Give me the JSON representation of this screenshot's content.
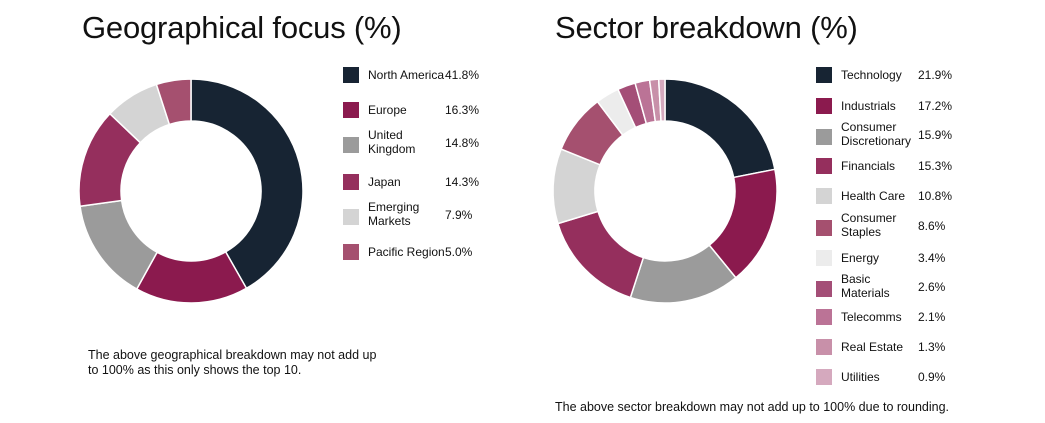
{
  "chart_data": [
    {
      "type": "pie",
      "title": "Geographical focus (%)",
      "categories": [
        "North America",
        "Europe",
        "United Kingdom",
        "Japan",
        "Emerging Markets",
        "Pacific Region"
      ],
      "values": [
        41.8,
        16.3,
        14.8,
        14.3,
        7.9,
        5.0
      ],
      "value_labels": [
        "41.8%",
        "16.3%",
        "14.8%",
        "14.3%",
        "7.9%",
        "5.0%"
      ],
      "colors": [
        "#172433",
        "#8b1a4e",
        "#9b9b9b",
        "#952f5d",
        "#d4d4d4",
        "#a5506f"
      ],
      "legend": "right",
      "footnote": "The above geographical breakdown may not add up to 100% as this only shows the top 10."
    },
    {
      "type": "pie",
      "title": "Sector breakdown (%)",
      "categories": [
        "Technology",
        "Industrials",
        "Consumer Discretionary",
        "Financials",
        "Health Care",
        "Consumer Staples",
        "Energy",
        "Basic Materials",
        "Telecomms",
        "Real Estate",
        "Utilities"
      ],
      "values": [
        21.9,
        17.2,
        15.9,
        15.3,
        10.8,
        8.6,
        3.4,
        2.6,
        2.1,
        1.3,
        0.9
      ],
      "value_labels": [
        "21.9%",
        "17.2%",
        "15.9%",
        "15.3%",
        "10.8%",
        "8.6%",
        "3.4%",
        "2.6%",
        "2.1%",
        "1.3%",
        "0.9%"
      ],
      "colors": [
        "#172433",
        "#8b1a4e",
        "#9b9b9b",
        "#952f5d",
        "#d4d4d4",
        "#a5506f",
        "#ececec",
        "#a44e77",
        "#bb7396",
        "#c890a9",
        "#d5a9be"
      ],
      "legend": "right",
      "footnote": "The above sector breakdown may not add up to 100% due to rounding."
    }
  ]
}
